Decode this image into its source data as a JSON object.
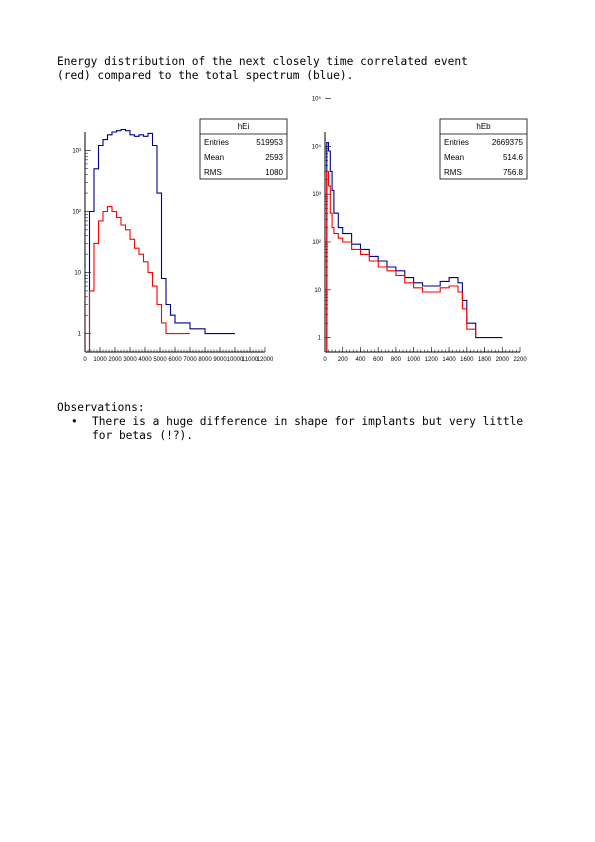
{
  "intro": {
    "line1": "Energy distribution of the next closely time correlated event",
    "line2": "(red) compared to the total spectrum (blue)."
  },
  "colors": {
    "total": "#00008b",
    "correlated": "#ff0000"
  },
  "chart_data": [
    {
      "type": "histogram",
      "log_y": true,
      "xlim": [
        0,
        12000
      ],
      "ylim": [
        0.5,
        2000
      ],
      "x_tick_labels": [
        "0",
        "1000",
        "2000",
        "3000",
        "4000",
        "5000",
        "6000",
        "7000",
        "8000",
        "9000",
        "10000",
        "11000",
        "12000"
      ],
      "y_tick_labels": [
        "1",
        "10",
        "10²",
        "10³"
      ],
      "stats_box": {
        "title": "hEi",
        "rows": [
          {
            "label": "Entries",
            "value": "519953"
          },
          {
            "label": "Mean",
            "value": "2593"
          },
          {
            "label": "RMS",
            "value": "1080"
          }
        ]
      },
      "series": [
        {
          "color": "total",
          "x": [
            300,
            600,
            900,
            1200,
            1500,
            1800,
            2100,
            2400,
            2700,
            3000,
            3300,
            3600,
            3900,
            4200,
            4500,
            4800,
            5100,
            5400,
            5700,
            6000,
            7000,
            8000,
            9000,
            10000
          ],
          "y": [
            100,
            500,
            1200,
            1500,
            1800,
            2000,
            2100,
            2200,
            2100,
            1800,
            1700,
            1800,
            1700,
            1900,
            1200,
            200,
            8,
            3,
            2,
            1.5,
            1.2,
            1,
            1,
            1
          ]
        },
        {
          "color": "correlated",
          "x": [
            300,
            600,
            900,
            1200,
            1500,
            1800,
            2100,
            2400,
            2700,
            3000,
            3300,
            3600,
            3900,
            4200,
            4500,
            4800,
            5100,
            5400,
            6000,
            7000
          ],
          "y": [
            5,
            30,
            70,
            100,
            120,
            100,
            80,
            60,
            50,
            35,
            25,
            20,
            15,
            10,
            6,
            3,
            1.5,
            1,
            1,
            1
          ]
        }
      ]
    },
    {
      "type": "histogram",
      "log_y": true,
      "xlim": [
        0,
        2200
      ],
      "ylim": [
        0.5,
        20000
      ],
      "x_tick_labels": [
        "0",
        "200",
        "400",
        "600",
        "800",
        "1000",
        "1200",
        "1400",
        "1600",
        "1800",
        "2000",
        "2200"
      ],
      "y_tick_labels": [
        "1",
        "10",
        "10²",
        "10³",
        "10⁴",
        "10⁵"
      ],
      "stats_box": {
        "title": "hEb",
        "rows": [
          {
            "label": "Entries",
            "value": "2669375"
          },
          {
            "label": "Mean",
            "value": "514.6"
          },
          {
            "label": "RMS",
            "value": "756.8"
          }
        ]
      },
      "series": [
        {
          "color": "total",
          "x": [
            20,
            40,
            60,
            80,
            100,
            150,
            200,
            300,
            400,
            500,
            600,
            700,
            800,
            900,
            1000,
            1100,
            1200,
            1300,
            1400,
            1500,
            1550,
            1600,
            1700,
            1800,
            1900,
            2000
          ],
          "y": [
            12000,
            8000,
            3000,
            1200,
            400,
            200,
            150,
            90,
            70,
            50,
            40,
            30,
            25,
            18,
            14,
            12,
            12,
            15,
            18,
            14,
            6,
            2,
            1,
            1,
            1,
            1
          ]
        },
        {
          "color": "correlated",
          "x": [
            20,
            40,
            60,
            80,
            100,
            150,
            200,
            300,
            400,
            500,
            600,
            700,
            800,
            900,
            1000,
            1100,
            1200,
            1300,
            1400,
            1500,
            1550,
            1600,
            1700
          ],
          "y": [
            3000,
            1500,
            400,
            200,
            150,
            120,
            100,
            70,
            55,
            40,
            30,
            25,
            20,
            14,
            11,
            9,
            9,
            11,
            12,
            9,
            4,
            1.5,
            1
          ]
        }
      ]
    }
  ],
  "observations": {
    "heading": "Observations:",
    "bullet_symbol": "•",
    "items": [
      "There is a huge difference in shape for implants but very little for betas (!?)."
    ]
  }
}
